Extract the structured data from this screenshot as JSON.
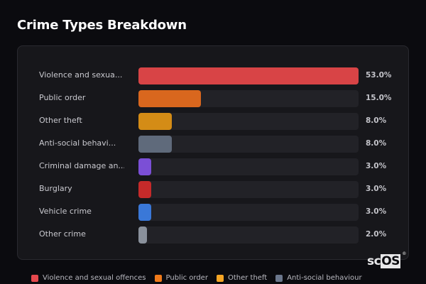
{
  "title": "Crime Types Breakdown",
  "chart_data": {
    "type": "bar",
    "orientation": "horizontal",
    "title": "Crime Types Breakdown",
    "categories": [
      "Violence and sexual offences",
      "Public order",
      "Other theft",
      "Anti-social behaviour",
      "Criminal damage and arson",
      "Burglary",
      "Vehicle crime",
      "Other crime"
    ],
    "display_labels": [
      "Violence and sexua...",
      "Public order",
      "Other theft",
      "Anti-social behavi...",
      "Criminal damage an...",
      "Burglary",
      "Vehicle crime",
      "Other crime"
    ],
    "values": [
      53.0,
      15.0,
      8.0,
      8.0,
      3.0,
      3.0,
      3.0,
      2.0
    ],
    "value_labels": [
      "53.0%",
      "15.0%",
      "8.0%",
      "8.0%",
      "3.0%",
      "3.0%",
      "3.0%",
      "2.0%"
    ],
    "colors": [
      "#d84446",
      "#d9671e",
      "#d48c16",
      "#5f6a7b",
      "#7b4fd6",
      "#c62a2a",
      "#3a78d8",
      "#8a919c"
    ],
    "unit": "%",
    "scale_max": 53.0,
    "grid": false,
    "legend_position": "bottom"
  },
  "legend": [
    {
      "label": "Violence and sexual offences",
      "color": "#e5484d"
    },
    {
      "label": "Public order",
      "color": "#f07a1a"
    },
    {
      "label": "Other theft",
      "color": "#f5a524"
    },
    {
      "label": "Anti-social behaviour",
      "color": "#6b778c"
    }
  ],
  "logo": {
    "prefix": "sc",
    "highlight": "OS",
    "mark": "®"
  }
}
